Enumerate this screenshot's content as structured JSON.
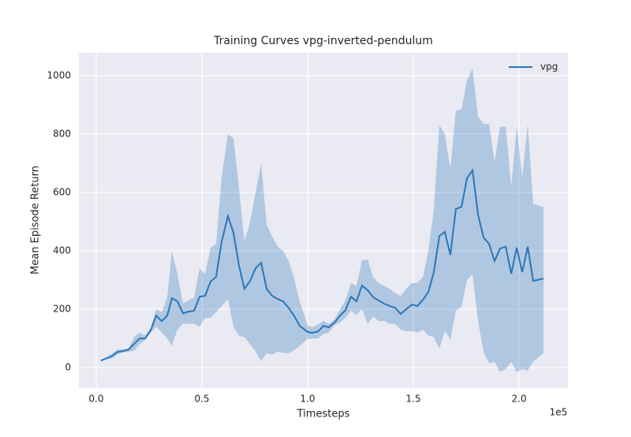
{
  "chart_data": {
    "type": "line",
    "title": "Training Curves vpg-inverted-pendulum",
    "x_label": "Timesteps",
    "y_label": "Mean Episode Return",
    "x_offset_label": "1e5",
    "xlim": [
      -0.082,
      2.231
    ],
    "ylim": [
      -70,
      1078
    ],
    "xticks": [
      {
        "value": 0,
        "label": "0.0"
      },
      0.5,
      {
        "value": 1,
        "label": "1.0"
      },
      1.5,
      {
        "value": 2,
        "label": "2.0"
      }
    ],
    "yticks": [
      0,
      200,
      400,
      600,
      800,
      1000
    ],
    "grid": true,
    "legend": "upper right",
    "x": [
      0.022,
      0.049,
      0.075,
      0.1,
      0.127,
      0.153,
      0.179,
      0.205,
      0.231,
      0.257,
      0.284,
      0.31,
      0.336,
      0.358,
      0.384,
      0.41,
      0.437,
      0.463,
      0.489,
      0.515,
      0.541,
      0.567,
      0.593,
      0.623,
      0.649,
      0.675,
      0.701,
      0.728,
      0.754,
      0.78,
      0.806,
      0.832,
      0.858,
      0.884,
      0.91,
      0.937,
      0.963,
      1.0,
      1.022,
      1.049,
      1.075,
      1.1,
      1.127,
      1.153,
      1.179,
      1.205,
      1.231,
      1.257,
      1.284,
      1.31,
      1.336,
      1.362,
      1.388,
      1.414,
      1.44,
      1.466,
      1.493,
      1.519,
      1.545,
      1.571,
      1.597,
      1.623,
      1.649,
      1.675,
      1.701,
      1.728,
      1.754,
      1.78,
      1.806,
      1.832,
      1.858,
      1.884,
      1.91,
      1.937,
      1.963,
      1.989,
      2.015,
      2.041,
      2.067,
      2.116
    ],
    "series": [
      {
        "name": "vpg",
        "color": "#2a76b8",
        "values": [
          24,
          32,
          40,
          54,
          57,
          62,
          81,
          100,
          100,
          127,
          178,
          159,
          178,
          238,
          227,
          186,
          192,
          195,
          243,
          246,
          295,
          311,
          430,
          519,
          462,
          351,
          270,
          297,
          341,
          359,
          270,
          246,
          235,
          227,
          205,
          176,
          143,
          122,
          119,
          124,
          143,
          138,
          154,
          178,
          197,
          243,
          227,
          281,
          265,
          241,
          230,
          219,
          211,
          205,
          184,
          200,
          216,
          211,
          232,
          259,
          327,
          451,
          465,
          386,
          543,
          551,
          649,
          676,
          524,
          446,
          424,
          365,
          408,
          414,
          322,
          411,
          327,
          414,
          297,
          305
        ],
        "upper": [
          26,
          36,
          48,
          62,
          62,
          66,
          104,
          120,
          110,
          135,
          200,
          190,
          240,
          400,
          320,
          220,
          230,
          240,
          340,
          320,
          410,
          425,
          650,
          800,
          785,
          620,
          430,
          500,
          600,
          700,
          490,
          450,
          415,
          400,
          365,
          305,
          225,
          145,
          138,
          148,
          160,
          150,
          165,
          200,
          230,
          290,
          280,
          368,
          370,
          310,
          290,
          280,
          270,
          255,
          245,
          270,
          290,
          290,
          310,
          400,
          545,
          830,
          800,
          680,
          880,
          885,
          985,
          1025,
          860,
          835,
          835,
          705,
          825,
          825,
          620,
          825,
          650,
          835,
          560,
          550
        ],
        "lower": [
          22,
          28,
          32,
          44,
          52,
          55,
          58,
          80,
          95,
          120,
          140,
          120,
          100,
          75,
          130,
          150,
          150,
          150,
          140,
          170,
          170,
          190,
          210,
          235,
          140,
          110,
          105,
          80,
          55,
          22,
          50,
          45,
          55,
          50,
          50,
          60,
          75,
          98,
          100,
          100,
          115,
          120,
          145,
          155,
          170,
          195,
          180,
          200,
          150,
          175,
          160,
          160,
          150,
          150,
          130,
          125,
          125,
          120,
          130,
          110,
          105,
          65,
          125,
          95,
          195,
          210,
          300,
          320,
          160,
          55,
          15,
          20,
          -15,
          -5,
          20,
          -15,
          -5,
          -10,
          20,
          50
        ]
      }
    ]
  }
}
